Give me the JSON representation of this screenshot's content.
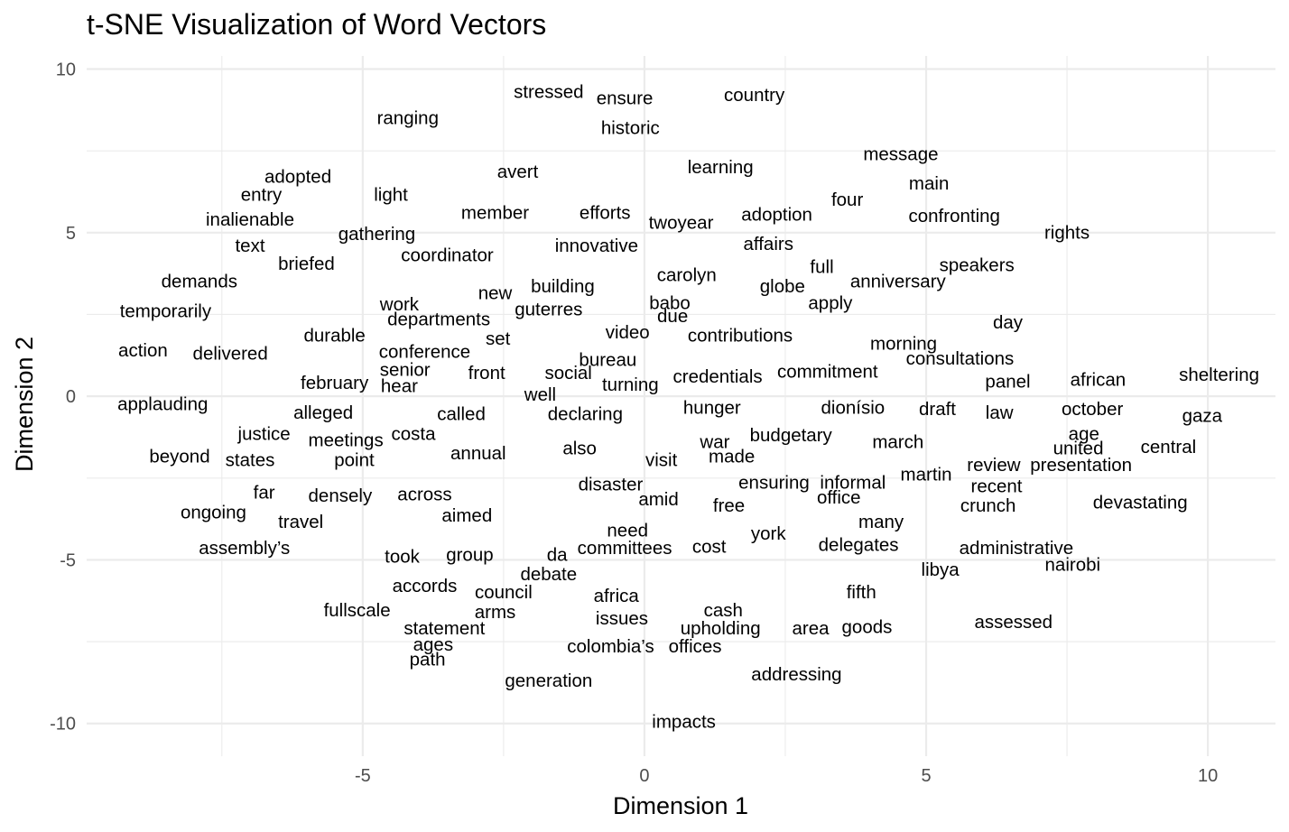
{
  "chart_data": {
    "type": "scatter",
    "title": "t-SNE Visualization of Word Vectors",
    "xlabel": "Dimension 1",
    "ylabel": "Dimension 2",
    "xlim": [
      -9.9,
      11.2
    ],
    "ylim": [
      -11.0,
      10.4
    ],
    "x_ticks": [
      -5,
      0,
      5,
      10
    ],
    "x_tick_labels": [
      "-5",
      "0",
      "5",
      "10"
    ],
    "y_ticks": [
      -10,
      -5,
      0,
      5,
      10
    ],
    "y_tick_labels": [
      "-10",
      "-5",
      "0",
      "5",
      "10"
    ],
    "grid": true,
    "points": [
      {
        "label": "stressed",
        "x": -1.7,
        "y": 9.3
      },
      {
        "label": "ensure",
        "x": -0.35,
        "y": 9.1
      },
      {
        "label": "country",
        "x": 1.95,
        "y": 9.2
      },
      {
        "label": "ranging",
        "x": -4.2,
        "y": 8.5
      },
      {
        "label": "historic",
        "x": -0.25,
        "y": 8.2
      },
      {
        "label": "message",
        "x": 4.55,
        "y": 7.4
      },
      {
        "label": "learning",
        "x": 1.35,
        "y": 7.0
      },
      {
        "label": "avert",
        "x": -2.25,
        "y": 6.85
      },
      {
        "label": "adopted",
        "x": -6.15,
        "y": 6.7
      },
      {
        "label": "main",
        "x": 5.05,
        "y": 6.5
      },
      {
        "label": "entry",
        "x": -6.8,
        "y": 6.15
      },
      {
        "label": "light",
        "x": -4.5,
        "y": 6.15
      },
      {
        "label": "four",
        "x": 3.6,
        "y": 6.0
      },
      {
        "label": "member",
        "x": -2.65,
        "y": 5.6
      },
      {
        "label": "efforts",
        "x": -0.7,
        "y": 5.6
      },
      {
        "label": "adoption",
        "x": 2.35,
        "y": 5.55
      },
      {
        "label": "inalienable",
        "x": -7.0,
        "y": 5.4
      },
      {
        "label": "confronting",
        "x": 5.5,
        "y": 5.5
      },
      {
        "label": "twoyear",
        "x": 0.65,
        "y": 5.3
      },
      {
        "label": "gathering",
        "x": -4.75,
        "y": 4.95
      },
      {
        "label": "rights",
        "x": 7.5,
        "y": 5.0
      },
      {
        "label": "text",
        "x": -7.0,
        "y": 4.6
      },
      {
        "label": "innovative",
        "x": -0.85,
        "y": 4.6
      },
      {
        "label": "affairs",
        "x": 2.2,
        "y": 4.65
      },
      {
        "label": "coordinator",
        "x": -3.5,
        "y": 4.3
      },
      {
        "label": "briefed",
        "x": -6.0,
        "y": 4.05
      },
      {
        "label": "full",
        "x": 3.15,
        "y": 3.95
      },
      {
        "label": "speakers",
        "x": 5.9,
        "y": 4.0
      },
      {
        "label": "demands",
        "x": -7.9,
        "y": 3.5
      },
      {
        "label": "carolyn",
        "x": 0.75,
        "y": 3.7
      },
      {
        "label": "anniversary",
        "x": 4.5,
        "y": 3.5
      },
      {
        "label": "building",
        "x": -1.45,
        "y": 3.35
      },
      {
        "label": "globe",
        "x": 2.45,
        "y": 3.35
      },
      {
        "label": "new",
        "x": -2.65,
        "y": 3.15
      },
      {
        "label": "work",
        "x": -4.35,
        "y": 2.8
      },
      {
        "label": "babo",
        "x": 0.45,
        "y": 2.85
      },
      {
        "label": "apply",
        "x": 3.3,
        "y": 2.85
      },
      {
        "label": "temporarily",
        "x": -8.5,
        "y": 2.6
      },
      {
        "label": "guterres",
        "x": -1.7,
        "y": 2.65
      },
      {
        "label": "due",
        "x": 0.5,
        "y": 2.45
      },
      {
        "label": "departments",
        "x": -3.65,
        "y": 2.35
      },
      {
        "label": "day",
        "x": 6.45,
        "y": 2.25
      },
      {
        "label": "video",
        "x": -0.3,
        "y": 1.95
      },
      {
        "label": "durable",
        "x": -5.5,
        "y": 1.85
      },
      {
        "label": "contributions",
        "x": 1.7,
        "y": 1.85
      },
      {
        "label": "set",
        "x": -2.6,
        "y": 1.75
      },
      {
        "label": "morning",
        "x": 4.6,
        "y": 1.6
      },
      {
        "label": "action",
        "x": -8.9,
        "y": 1.4
      },
      {
        "label": "delivered",
        "x": -7.35,
        "y": 1.3
      },
      {
        "label": "conference",
        "x": -3.9,
        "y": 1.35
      },
      {
        "label": "bureau",
        "x": -0.65,
        "y": 1.1
      },
      {
        "label": "consultations",
        "x": 5.6,
        "y": 1.15
      },
      {
        "label": "senior",
        "x": -4.25,
        "y": 0.8
      },
      {
        "label": "commitment",
        "x": 3.25,
        "y": 0.75
      },
      {
        "label": "front",
        "x": -2.8,
        "y": 0.7
      },
      {
        "label": "social",
        "x": -1.35,
        "y": 0.7
      },
      {
        "label": "credentials",
        "x": 1.3,
        "y": 0.6
      },
      {
        "label": "sheltering",
        "x": 10.2,
        "y": 0.65
      },
      {
        "label": "african",
        "x": 8.05,
        "y": 0.5
      },
      {
        "label": "february",
        "x": -5.5,
        "y": 0.4
      },
      {
        "label": "panel",
        "x": 6.45,
        "y": 0.45
      },
      {
        "label": "turning",
        "x": -0.25,
        "y": 0.35
      },
      {
        "label": "hear",
        "x": -4.35,
        "y": 0.3
      },
      {
        "label": "well",
        "x": -1.85,
        "y": 0.05
      },
      {
        "label": "applauding",
        "x": -8.55,
        "y": -0.25
      },
      {
        "label": "hunger",
        "x": 1.2,
        "y": -0.35
      },
      {
        "label": "dionísio",
        "x": 3.7,
        "y": -0.35
      },
      {
        "label": "draft",
        "x": 5.2,
        "y": -0.4
      },
      {
        "label": "october",
        "x": 7.95,
        "y": -0.4
      },
      {
        "label": "alleged",
        "x": -5.7,
        "y": -0.5
      },
      {
        "label": "called",
        "x": -3.25,
        "y": -0.55
      },
      {
        "label": "declaring",
        "x": -1.05,
        "y": -0.55
      },
      {
        "label": "law",
        "x": 6.3,
        "y": -0.5
      },
      {
        "label": "gaza",
        "x": 9.9,
        "y": -0.6
      },
      {
        "label": "justice",
        "x": -6.75,
        "y": -1.15
      },
      {
        "label": "costa",
        "x": -4.1,
        "y": -1.15
      },
      {
        "label": "age",
        "x": 7.8,
        "y": -1.15
      },
      {
        "label": "budgetary",
        "x": 2.6,
        "y": -1.2
      },
      {
        "label": "meetings",
        "x": -5.3,
        "y": -1.35
      },
      {
        "label": "war",
        "x": 1.25,
        "y": -1.4
      },
      {
        "label": "march",
        "x": 4.5,
        "y": -1.4
      },
      {
        "label": "also",
        "x": -1.15,
        "y": -1.6
      },
      {
        "label": "united",
        "x": 7.7,
        "y": -1.6
      },
      {
        "label": "central",
        "x": 9.3,
        "y": -1.55
      },
      {
        "label": "beyond",
        "x": -8.25,
        "y": -1.85
      },
      {
        "label": "annual",
        "x": -2.95,
        "y": -1.75
      },
      {
        "label": "made",
        "x": 1.55,
        "y": -1.85
      },
      {
        "label": "states",
        "x": -7.0,
        "y": -1.95
      },
      {
        "label": "point",
        "x": -5.15,
        "y": -1.95
      },
      {
        "label": "visit",
        "x": 0.3,
        "y": -1.95
      },
      {
        "label": "review",
        "x": 6.2,
        "y": -2.1
      },
      {
        "label": "presentation",
        "x": 7.75,
        "y": -2.1
      },
      {
        "label": "martin",
        "x": 5.0,
        "y": -2.4
      },
      {
        "label": "disaster",
        "x": -0.6,
        "y": -2.7
      },
      {
        "label": "ensuring",
        "x": 2.3,
        "y": -2.65
      },
      {
        "label": "informal",
        "x": 3.7,
        "y": -2.65
      },
      {
        "label": "recent",
        "x": 6.25,
        "y": -2.75
      },
      {
        "label": "far",
        "x": -6.75,
        "y": -2.95
      },
      {
        "label": "densely",
        "x": -5.4,
        "y": -3.05
      },
      {
        "label": "across",
        "x": -3.9,
        "y": -3.0
      },
      {
        "label": "amid",
        "x": 0.25,
        "y": -3.15
      },
      {
        "label": "office",
        "x": 3.45,
        "y": -3.1
      },
      {
        "label": "free",
        "x": 1.5,
        "y": -3.35
      },
      {
        "label": "crunch",
        "x": 6.1,
        "y": -3.35
      },
      {
        "label": "devastating",
        "x": 8.8,
        "y": -3.25
      },
      {
        "label": "ongoing",
        "x": -7.65,
        "y": -3.55
      },
      {
        "label": "aimed",
        "x": -3.15,
        "y": -3.65
      },
      {
        "label": "travel",
        "x": -6.1,
        "y": -3.85
      },
      {
        "label": "many",
        "x": 4.2,
        "y": -3.85
      },
      {
        "label": "need",
        "x": -0.3,
        "y": -4.1
      },
      {
        "label": "york",
        "x": 2.2,
        "y": -4.2
      },
      {
        "label": "delegates",
        "x": 3.8,
        "y": -4.55
      },
      {
        "label": "assembly’s",
        "x": -7.1,
        "y": -4.65
      },
      {
        "label": "committees",
        "x": -0.35,
        "y": -4.65
      },
      {
        "label": "cost",
        "x": 1.15,
        "y": -4.6
      },
      {
        "label": "administrative",
        "x": 6.6,
        "y": -4.65
      },
      {
        "label": "took",
        "x": -4.3,
        "y": -4.9
      },
      {
        "label": "group",
        "x": -3.1,
        "y": -4.85
      },
      {
        "label": "da",
        "x": -1.55,
        "y": -4.85
      },
      {
        "label": "libya",
        "x": 5.25,
        "y": -5.3
      },
      {
        "label": "nairobi",
        "x": 7.6,
        "y": -5.15
      },
      {
        "label": "debate",
        "x": -1.7,
        "y": -5.45
      },
      {
        "label": "accords",
        "x": -3.9,
        "y": -5.8
      },
      {
        "label": "council",
        "x": -2.5,
        "y": -6.0
      },
      {
        "label": "fifth",
        "x": 3.85,
        "y": -6.0
      },
      {
        "label": "africa",
        "x": -0.5,
        "y": -6.1
      },
      {
        "label": "fullscale",
        "x": -5.1,
        "y": -6.55
      },
      {
        "label": "arms",
        "x": -2.65,
        "y": -6.6
      },
      {
        "label": "cash",
        "x": 1.4,
        "y": -6.55
      },
      {
        "label": "issues",
        "x": -0.4,
        "y": -6.8
      },
      {
        "label": "assessed",
        "x": 6.55,
        "y": -6.9
      },
      {
        "label": "statement",
        "x": -3.55,
        "y": -7.1
      },
      {
        "label": "upholding",
        "x": 1.35,
        "y": -7.1
      },
      {
        "label": "area",
        "x": 2.95,
        "y": -7.1
      },
      {
        "label": "goods",
        "x": 3.95,
        "y": -7.05
      },
      {
        "label": "ages",
        "x": -3.75,
        "y": -7.6
      },
      {
        "label": "colombia’s",
        "x": -0.6,
        "y": -7.65
      },
      {
        "label": "offices",
        "x": 0.9,
        "y": -7.65
      },
      {
        "label": "path",
        "x": -3.85,
        "y": -8.05
      },
      {
        "label": "addressing",
        "x": 2.7,
        "y": -8.5
      },
      {
        "label": "generation",
        "x": -1.7,
        "y": -8.7
      },
      {
        "label": "impacts",
        "x": 0.7,
        "y": -9.95
      }
    ]
  }
}
